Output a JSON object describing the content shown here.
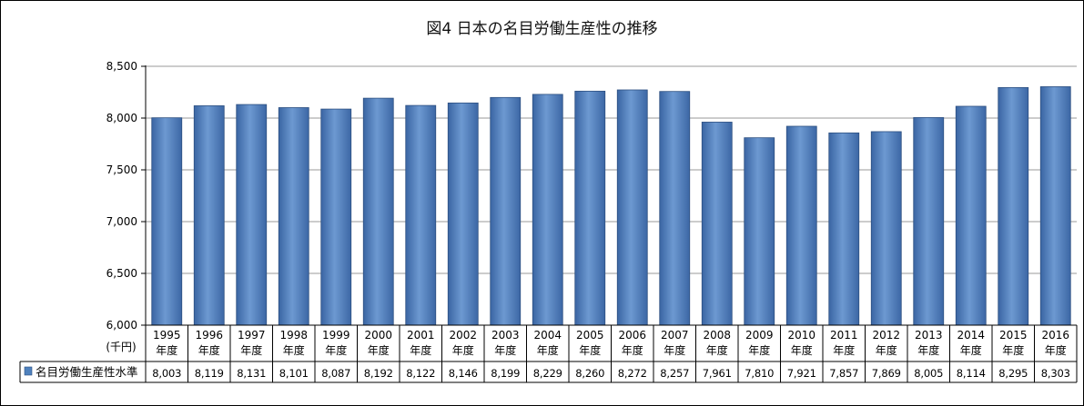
{
  "chart_data": {
    "type": "bar",
    "title": "図4 日本の名目労働生産性の推移",
    "ylabel": "(千円)",
    "ylim": [
      6000,
      8500
    ],
    "yticks": [
      6000,
      6500,
      7000,
      7500,
      8000,
      8500
    ],
    "ytick_labels": [
      "6,000",
      "6,500",
      "7,000",
      "7,500",
      "8,000",
      "8,500"
    ],
    "categories": [
      "1995",
      "1996",
      "1997",
      "1998",
      "1999",
      "2000",
      "2001",
      "2002",
      "2003",
      "2004",
      "2005",
      "2006",
      "2007",
      "2008",
      "2009",
      "2010",
      "2011",
      "2012",
      "2013",
      "2014",
      "2015",
      "2016"
    ],
    "category_suffix": "年度",
    "series": [
      {
        "name": "名目労働生産性水準",
        "values": [
          8003,
          8119,
          8131,
          8101,
          8087,
          8192,
          8122,
          8146,
          8199,
          8229,
          8260,
          8272,
          8257,
          7961,
          7810,
          7921,
          7857,
          7869,
          8005,
          8114,
          8295,
          8303
        ],
        "value_labels": [
          "8,003",
          "8,119",
          "8,131",
          "8,101",
          "8,087",
          "8,192",
          "8,122",
          "8,146",
          "8,199",
          "8,229",
          "8,260",
          "8,272",
          "8,257",
          "7,961",
          "7,810",
          "7,921",
          "7,857",
          "7,869",
          "8,005",
          "8,114",
          "8,295",
          "8,303"
        ],
        "color": "#4f81bd"
      }
    ],
    "legend": "data-table",
    "grid": true
  }
}
